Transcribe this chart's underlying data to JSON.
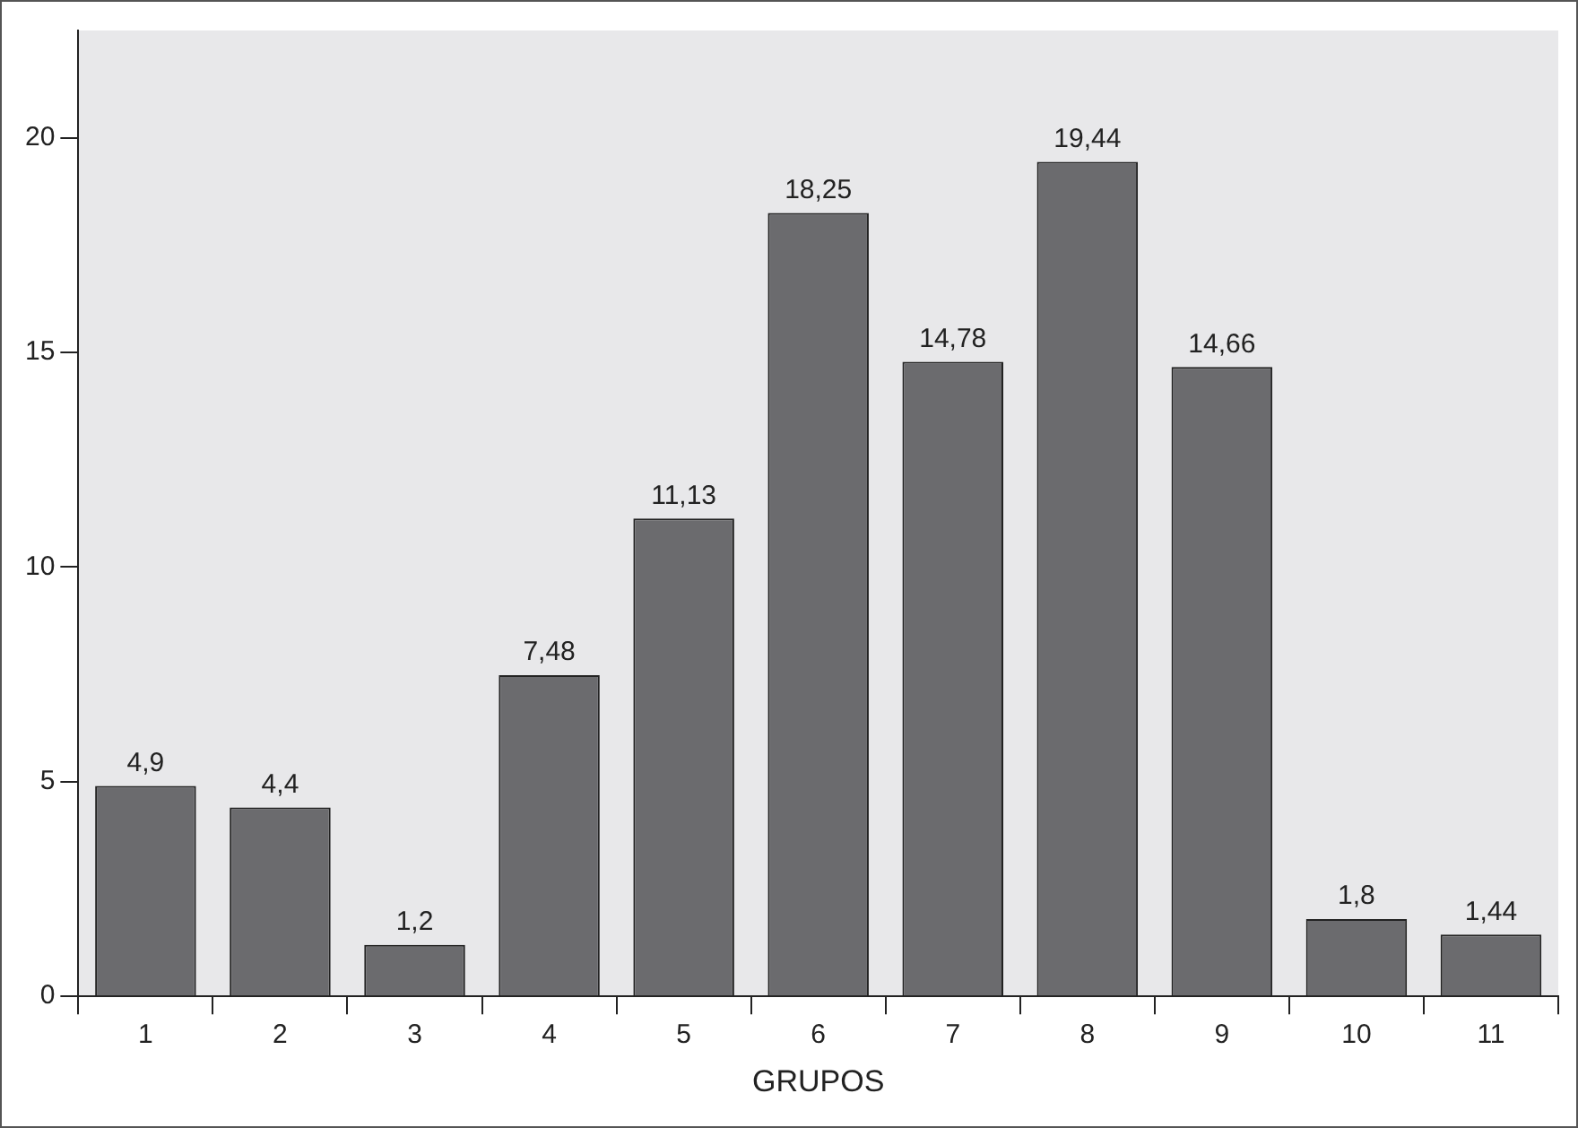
{
  "chart_data": {
    "type": "bar",
    "xlabel": "GRUPOS",
    "categories": [
      "1",
      "2",
      "3",
      "4",
      "5",
      "6",
      "7",
      "8",
      "9",
      "10",
      "11"
    ],
    "values": [
      4.9,
      4.4,
      1.2,
      7.48,
      11.13,
      18.25,
      14.78,
      19.44,
      14.66,
      1.8,
      1.44
    ],
    "value_labels": [
      "4,9",
      "4,4",
      "1,2",
      "7,48",
      "11,13",
      "18,25",
      "14,78",
      "19,44",
      "14,66",
      "1,8",
      "1,44"
    ],
    "color": "#6b6b6e",
    "ylim": [
      0,
      22.5
    ],
    "yticks": [
      0,
      5,
      10,
      15,
      20
    ],
    "grid": false,
    "legend": false
  }
}
